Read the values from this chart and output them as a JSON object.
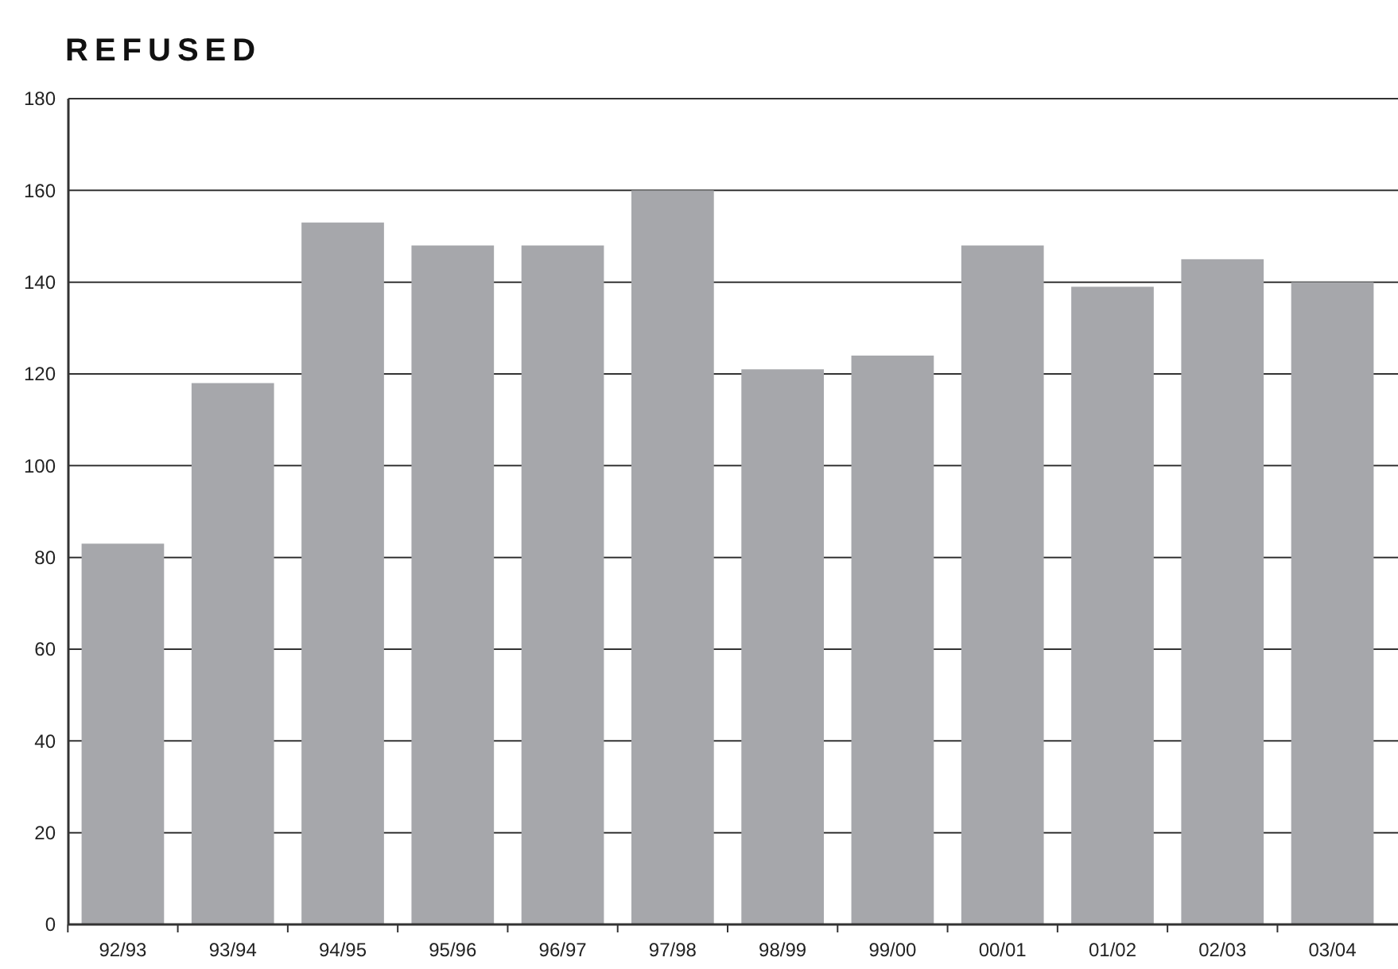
{
  "chart_data": {
    "type": "bar",
    "title": "REFUSED",
    "categories": [
      "92/93",
      "93/94",
      "94/95",
      "95/96",
      "96/97",
      "97/98",
      "98/99",
      "99/00",
      "00/01",
      "01/02",
      "02/03",
      "03/04"
    ],
    "values": [
      83,
      118,
      153,
      148,
      148,
      160,
      121,
      124,
      148,
      139,
      145,
      140
    ],
    "color": "#a6a7ab",
    "ylim": [
      0,
      180
    ],
    "yticks": [
      0,
      20,
      40,
      60,
      80,
      100,
      120,
      140,
      160,
      180
    ],
    "grid": "y"
  }
}
